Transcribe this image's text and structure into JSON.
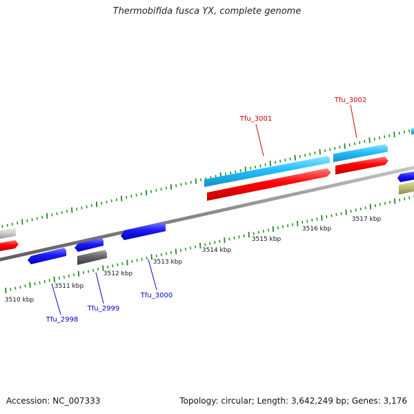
{
  "title": "Thermobifida fusca YX, complete genome",
  "footer": {
    "accession": "Accession: NC_007333",
    "summary": "Topology: circular; Length: 3,642,249 bp; Genes: 3,176"
  },
  "colors": {
    "forward_cds": "#ff0000",
    "forward_gene": "#22bfff",
    "reverse_cds": "#1a1aff",
    "reverse_gene_grey": "#666666",
    "other_feature": "#b8b870",
    "backbone": "#888888",
    "ticks": "#1a8a1a",
    "forward_label": "#cc0000",
    "reverse_label": "#0000cc"
  },
  "scale_labels": [
    "3510 kbp",
    "3511 kbp",
    "3512 kbp",
    "3513 kbp",
    "3514 kbp",
    "3515 kbp",
    "3516 kbp",
    "3517 kbp"
  ],
  "gene_labels": {
    "tfu_3001": "Tfu_3001",
    "tfu_3002": "Tfu_3002",
    "tfu_3000": "Tfu_3000",
    "tfu_2999": "Tfu_2999",
    "tfu_2998": "Tfu_2998"
  }
}
